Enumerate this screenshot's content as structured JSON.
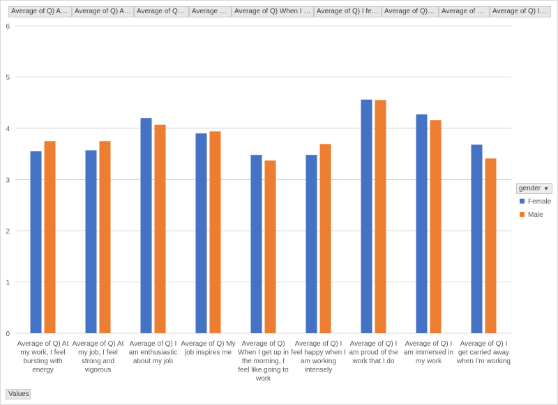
{
  "field_buttons": [
    "Average of Q) At my...",
    "Average of Q) At...",
    "Average of Q) I...",
    "Average of...",
    "Average of Q) When I get...",
    "Average of Q) I feel...",
    "Average of Q) I...",
    "Average of Q) I...",
    "Average of Q) I get..."
  ],
  "values_button": "Values",
  "legend": {
    "field": "gender",
    "dropdown_icon": "dropdown-arrow-icon"
  },
  "colors": {
    "Female": "#4472c4",
    "Male": "#ed7d31",
    "grid": "#d9d9d9"
  },
  "chart_data": {
    "type": "bar",
    "categories": [
      [
        "Average of Q) At",
        "my work, I feel",
        "bursting with",
        "energy"
      ],
      [
        "Average of Q) At",
        "my job, I feel",
        "strong and",
        "vigorous"
      ],
      [
        "Average of Q) I",
        "am enthusiastic",
        "about my job"
      ],
      [
        "Average of Q) My",
        "job inspires me"
      ],
      [
        "Average of Q)",
        "When I get up in",
        "the morning, I",
        "feel like going to",
        "work"
      ],
      [
        "Average of Q) I",
        "feel happy when I",
        "am working",
        "intensely"
      ],
      [
        "Average of Q) I",
        "am proud of the",
        "work that I do"
      ],
      [
        "Average of Q) I",
        "am immersed in",
        "my work"
      ],
      [
        "Average of Q) I",
        "get carried away",
        "when I'm working"
      ]
    ],
    "series": [
      {
        "name": "Female",
        "values": [
          3.55,
          3.57,
          4.2,
          3.9,
          3.48,
          3.48,
          4.56,
          4.27,
          3.68
        ]
      },
      {
        "name": "Male",
        "values": [
          3.75,
          3.75,
          4.07,
          3.94,
          3.37,
          3.69,
          4.55,
          4.16,
          3.41
        ]
      }
    ],
    "ylim": [
      0,
      6
    ],
    "yticks": [
      "0",
      "1",
      "2",
      "3",
      "4",
      "5",
      "6"
    ],
    "grid": true,
    "legend_position": "right"
  }
}
